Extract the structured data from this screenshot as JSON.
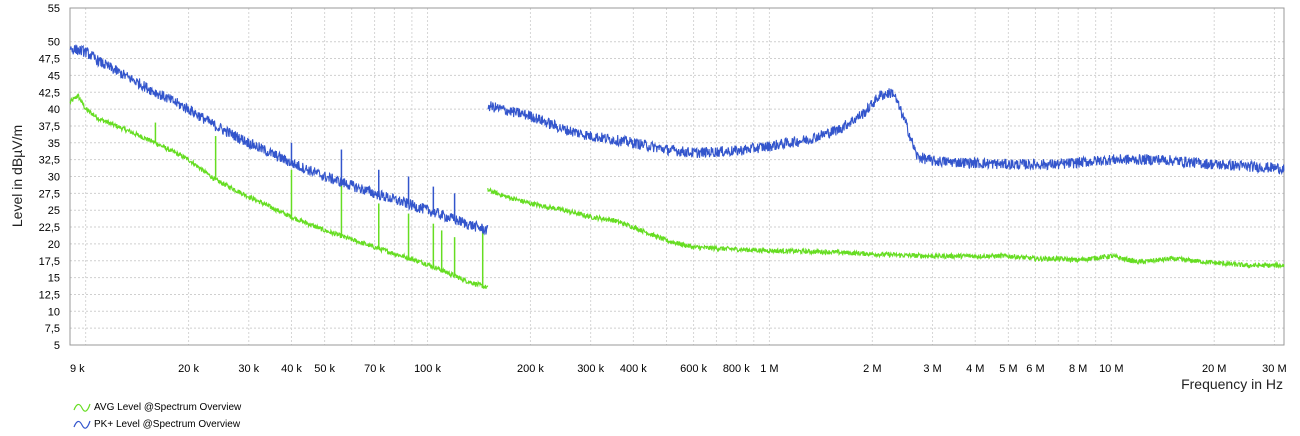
{
  "chart_data": {
    "type": "line",
    "title": "",
    "xlabel": "Frequency in Hz",
    "ylabel": "Level in dBµV/m",
    "x_scale": "log",
    "xlim": [
      9000,
      32000000
    ],
    "ylim": [
      5,
      55
    ],
    "grid": true,
    "legend_position": "bottom-left",
    "y_ticks": [
      "5",
      "7,5",
      "10",
      "12,5",
      "15",
      "17,5",
      "20",
      "22,5",
      "25",
      "27,5",
      "30",
      "32,5",
      "35",
      "37,5",
      "40",
      "42,5",
      "45",
      "47,5",
      "50",
      "55"
    ],
    "y_tick_values": [
      5,
      7.5,
      10,
      12.5,
      15,
      17.5,
      20,
      22.5,
      25,
      27.5,
      30,
      32.5,
      35,
      37.5,
      40,
      42.5,
      45,
      47.5,
      50,
      55
    ],
    "x_ticks": [
      {
        "v": 9000,
        "label": "9 k"
      },
      {
        "v": 20000,
        "label": "20 k"
      },
      {
        "v": 30000,
        "label": "30 k"
      },
      {
        "v": 40000,
        "label": "40 k"
      },
      {
        "v": 50000,
        "label": "50 k"
      },
      {
        "v": 70000,
        "label": "70 k"
      },
      {
        "v": 100000,
        "label": "100 k"
      },
      {
        "v": 200000,
        "label": "200 k"
      },
      {
        "v": 300000,
        "label": "300 k"
      },
      {
        "v": 400000,
        "label": "400 k"
      },
      {
        "v": 600000,
        "label": "600 k"
      },
      {
        "v": 800000,
        "label": "800 k"
      },
      {
        "v": 1000000,
        "label": "1 M"
      },
      {
        "v": 2000000,
        "label": "2 M"
      },
      {
        "v": 3000000,
        "label": "3 M"
      },
      {
        "v": 4000000,
        "label": "4 M"
      },
      {
        "v": 5000000,
        "label": "5 M"
      },
      {
        "v": 6000000,
        "label": "6 M"
      },
      {
        "v": 8000000,
        "label": "8 M"
      },
      {
        "v": 10000000,
        "label": "10 M"
      },
      {
        "v": 20000000,
        "label": "20 M"
      },
      {
        "v": 30000000,
        "label": "30 M"
      }
    ],
    "series": [
      {
        "name": "AVG Level @Spectrum Overview",
        "color": "#66dd22",
        "segments": [
          {
            "x": [
              9000,
              9500,
              10000,
              11000,
              13000,
              16000,
              20000,
              24000,
              30000,
              40000,
              50000,
              70000,
              100000,
              130000,
              150000
            ],
            "y": [
              41,
              42,
              40,
              38.5,
              37,
              35,
              32.5,
              29.5,
              27,
              24,
              22,
              19.5,
              17,
              14.5,
              13.5
            ]
          },
          {
            "x": [
              150000,
              170000,
              200000,
              250000,
              300000,
              350000,
              400000,
              500000,
              600000,
              800000,
              1000000,
              1500000,
              2000000,
              2500000,
              3000000,
              4000000,
              5000000,
              6000000,
              7000000,
              8000000,
              10000000,
              12000000,
              15000000,
              20000000,
              25000000,
              32000000
            ],
            "y": [
              28,
              27,
              26,
              25,
              24,
              23.5,
              22.5,
              20.5,
              19.5,
              19.2,
              19,
              18.8,
              18.5,
              18.3,
              18.2,
              18.2,
              18.2,
              17.8,
              17.8,
              17.6,
              18.2,
              17.3,
              17.8,
              17.2,
              16.8,
              16.8
            ]
          }
        ],
        "spikes": [
          {
            "x": 16000,
            "y": 38
          },
          {
            "x": 24000,
            "y": 36
          },
          {
            "x": 40000,
            "y": 31
          },
          {
            "x": 56000,
            "y": 29
          },
          {
            "x": 72000,
            "y": 26
          },
          {
            "x": 88000,
            "y": 24.5
          },
          {
            "x": 104000,
            "y": 23
          },
          {
            "x": 110000,
            "y": 22
          },
          {
            "x": 120000,
            "y": 21
          },
          {
            "x": 145000,
            "y": 22
          }
        ]
      },
      {
        "name": "PK+ Level @Spectrum Overview",
        "color": "#3355cc",
        "segments": [
          {
            "x": [
              9000,
              10000,
              11000,
              13000,
              16000,
              20000,
              24000,
              30000,
              40000,
              50000,
              70000,
              100000,
              130000,
              150000
            ],
            "y": [
              49,
              48.5,
              47,
              45,
              42.5,
              40,
              37.5,
              35,
              32,
              30,
              27.5,
              25,
              23,
              22
            ]
          },
          {
            "x": [
              150000,
              180000,
              200000,
              250000,
              300000,
              400000,
              500000,
              600000,
              800000,
              1000000,
              1300000,
              1600000,
              1900000,
              2100000,
              2300000,
              2500000,
              2700000,
              3000000,
              4000000,
              5000000,
              7000000,
              10000000,
              14000000,
              20000000,
              25000000,
              32000000
            ],
            "y": [
              40.5,
              39.5,
              39,
              37,
              36,
              35,
              34,
              33.5,
              33.8,
              34.5,
              35.5,
              37,
              39.5,
              42,
              42.5,
              38,
              33,
              32.3,
              32,
              31.8,
              31.8,
              32.5,
              32.5,
              31.8,
              31.5,
              31.2
            ]
          }
        ],
        "spikes": [
          {
            "x": 40000,
            "y": 35
          },
          {
            "x": 56000,
            "y": 34
          },
          {
            "x": 72000,
            "y": 31
          },
          {
            "x": 88000,
            "y": 30
          },
          {
            "x": 104000,
            "y": 28.5
          },
          {
            "x": 120000,
            "y": 27.5
          }
        ]
      }
    ]
  }
}
